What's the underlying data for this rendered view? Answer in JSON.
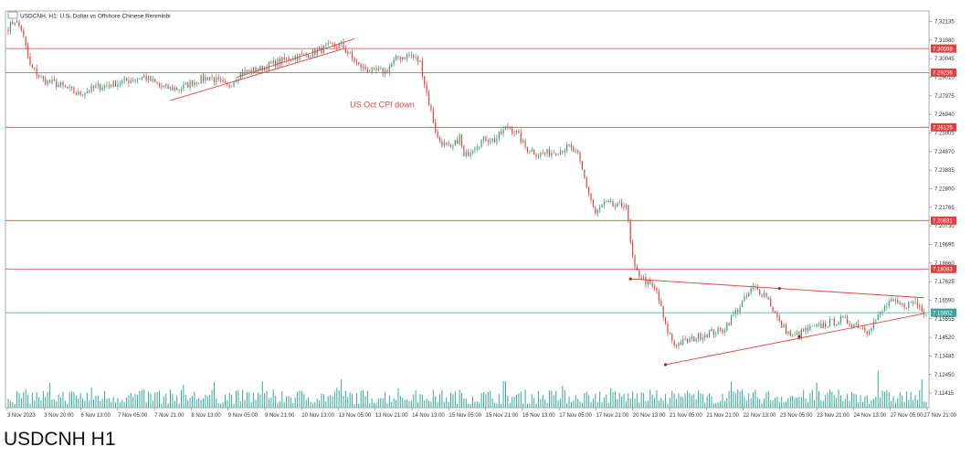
{
  "caption": "USDCNH H1",
  "chart_data": {
    "type": "candlestick",
    "title": "USDCNH, H1:  U.S. Dollar vs Offshore Chinese Renminbi",
    "ylim": [
      7.1055,
      7.3275
    ],
    "y_ticks": [
      "7.32135",
      "7.31080",
      "7.30045",
      "7.29010",
      "7.27975",
      "7.26940",
      "7.25905",
      "7.24870",
      "7.23835",
      "7.22800",
      "7.21765",
      "7.20730",
      "7.19695",
      "7.18660",
      "7.17625",
      "7.16590",
      "7.15555",
      "7.14520",
      "7.13485",
      "7.12450",
      "7.11415"
    ],
    "x_ticks": [
      "3 Nov 2023",
      "3 Nov 20:00",
      "6 Nov 13:00",
      "7 Nov 05:00",
      "7 Nov 21:00",
      "8 Nov 13:00",
      "9 Nov 05:00",
      "9 Nov 21:00",
      "10 Nov 13:00",
      "13 Nov 05:00",
      "13 Nov 21:00",
      "14 Nov 13:00",
      "15 Nov 05:00",
      "15 Nov 21:00",
      "16 Nov 13:00",
      "17 Nov 05:00",
      "17 Nov 21:00",
      "20 Nov 13:00",
      "21 Nov 05:00",
      "21 Nov 21:00",
      "22 Nov 13:00",
      "23 Nov 05:00",
      "23 Nov 21:00",
      "24 Nov 13:00",
      "27 Nov 05:00",
      "27 Nov 21:00"
    ],
    "levels": [
      {
        "label": "7.30598",
        "value": 7.30598,
        "color": "#e04040"
      },
      {
        "label": "7.29236",
        "value": 7.29236,
        "color": "#e04040"
      },
      {
        "label": "7.26125",
        "value": 7.26125,
        "color": "#e04040"
      },
      {
        "label": "7.20831",
        "value": 7.20831,
        "color": "#e04040"
      },
      {
        "label": "7.18083",
        "value": 7.18083,
        "color": "#e04040"
      }
    ],
    "current_price": {
      "label": "7.15602",
      "value": 7.15602,
      "color": "#3aa39a"
    },
    "annotations": [
      {
        "text": "US Oct CPI down"
      }
    ],
    "key_path": [
      [
        0,
        7.318
      ],
      [
        3,
        7.322
      ],
      [
        6,
        7.317
      ],
      [
        10,
        7.296
      ],
      [
        16,
        7.288
      ],
      [
        24,
        7.285
      ],
      [
        32,
        7.28
      ],
      [
        40,
        7.284
      ],
      [
        52,
        7.287
      ],
      [
        62,
        7.29
      ],
      [
        70,
        7.284
      ],
      [
        78,
        7.283
      ],
      [
        84,
        7.287
      ],
      [
        92,
        7.29
      ],
      [
        100,
        7.284
      ],
      [
        106,
        7.292
      ],
      [
        114,
        7.294
      ],
      [
        122,
        7.298
      ],
      [
        130,
        7.301
      ],
      [
        138,
        7.303
      ],
      [
        146,
        7.307
      ],
      [
        152,
        7.308
      ],
      [
        156,
        7.302
      ],
      [
        160,
        7.296
      ],
      [
        166,
        7.293
      ],
      [
        172,
        7.293
      ],
      [
        178,
        7.301
      ],
      [
        184,
        7.302
      ],
      [
        188,
        7.298
      ],
      [
        192,
        7.275
      ],
      [
        196,
        7.255
      ],
      [
        202,
        7.248
      ],
      [
        206,
        7.256
      ],
      [
        208,
        7.244
      ],
      [
        212,
        7.25
      ],
      [
        218,
        7.255
      ],
      [
        222,
        7.254
      ],
      [
        228,
        7.262
      ],
      [
        232,
        7.258
      ],
      [
        236,
        7.25
      ],
      [
        242,
        7.246
      ],
      [
        248,
        7.247
      ],
      [
        256,
        7.25
      ],
      [
        260,
        7.245
      ],
      [
        264,
        7.228
      ],
      [
        268,
        7.212
      ],
      [
        272,
        7.218
      ],
      [
        278,
        7.216
      ],
      [
        282,
        7.218
      ],
      [
        284,
        7.195
      ],
      [
        286,
        7.18
      ],
      [
        290,
        7.175
      ],
      [
        296,
        7.168
      ],
      [
        300,
        7.148
      ],
      [
        304,
        7.138
      ],
      [
        310,
        7.14
      ],
      [
        318,
        7.144
      ],
      [
        326,
        7.146
      ],
      [
        334,
        7.16
      ],
      [
        340,
        7.17
      ],
      [
        346,
        7.166
      ],
      [
        352,
        7.15
      ],
      [
        358,
        7.142
      ],
      [
        364,
        7.146
      ],
      [
        372,
        7.149
      ],
      [
        380,
        7.152
      ],
      [
        388,
        7.149
      ],
      [
        392,
        7.146
      ],
      [
        398,
        7.155
      ],
      [
        402,
        7.162
      ],
      [
        408,
        7.16
      ],
      [
        414,
        7.162
      ],
      [
        418,
        7.157
      ]
    ],
    "grid": false,
    "legend": "none"
  }
}
